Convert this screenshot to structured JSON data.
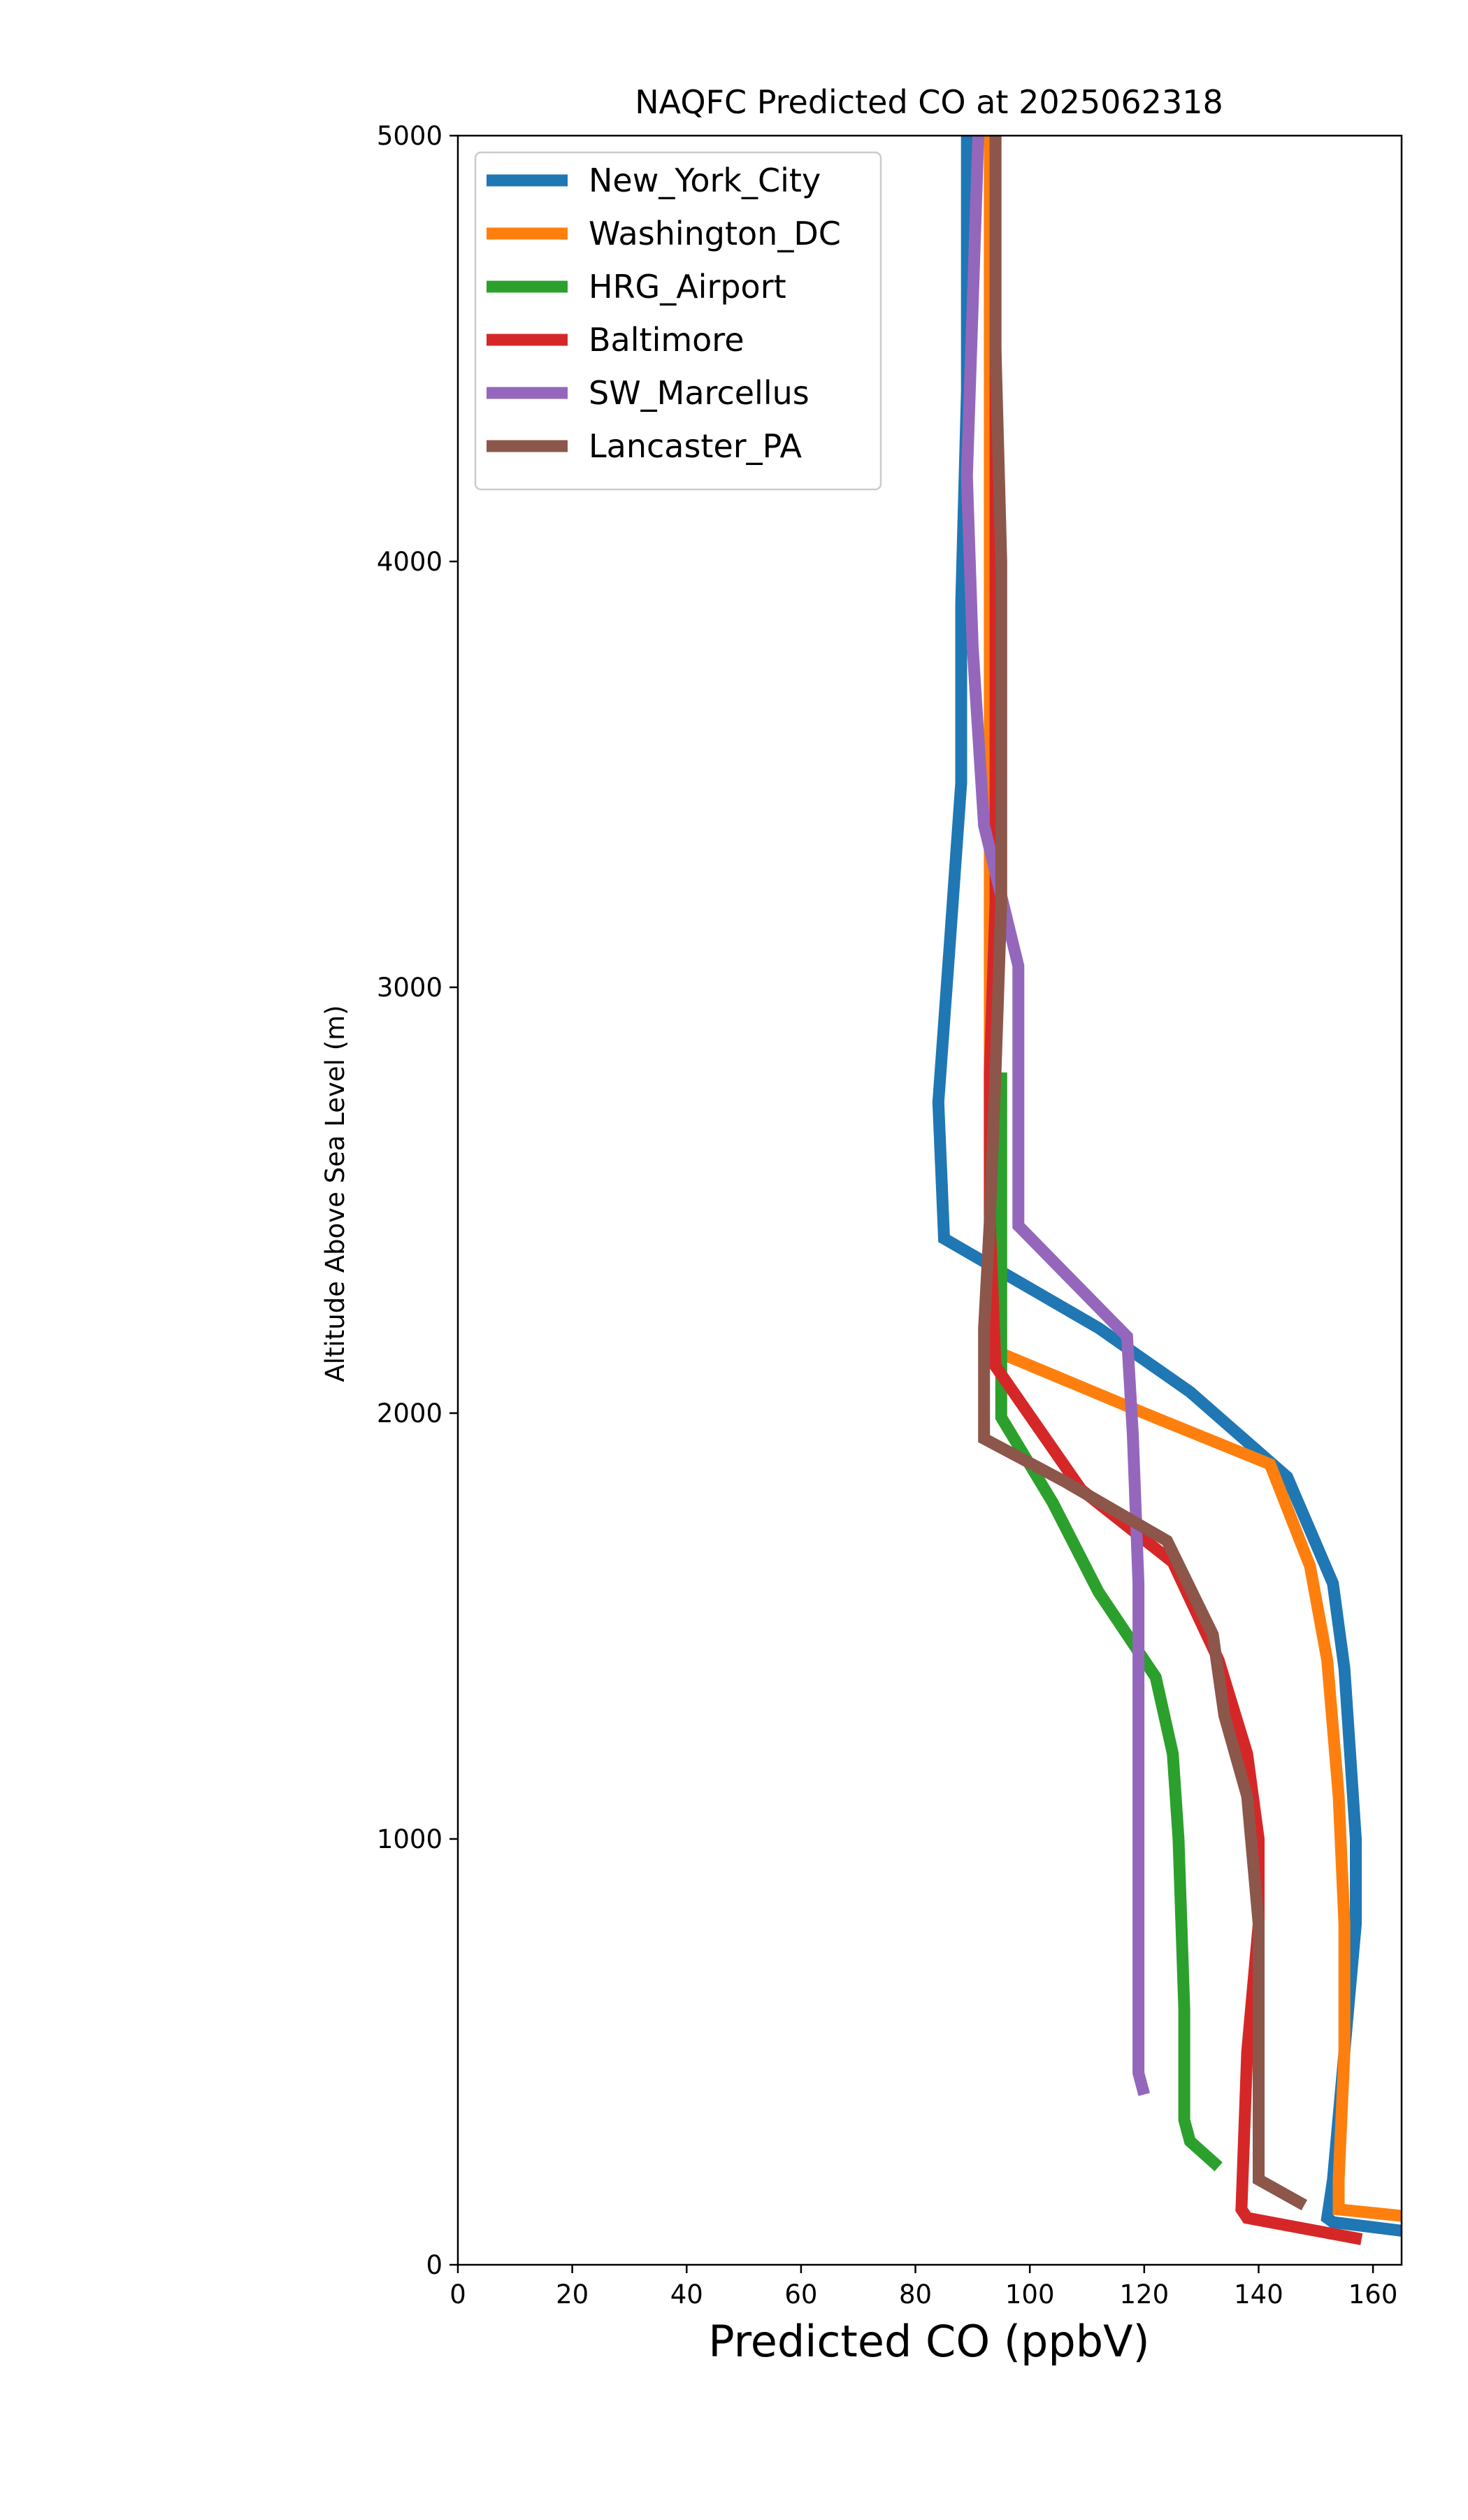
{
  "chart_data": {
    "type": "line",
    "title": "NAQFC Predicted CO at 2025062318",
    "xlabel": "Predicted CO (ppbV)",
    "ylabel": "Altitude Above Sea Level (m)",
    "xlim": [
      0,
      165
    ],
    "ylim": [
      0,
      5000
    ],
    "xticks": [
      0,
      20,
      40,
      60,
      80,
      100,
      120,
      140,
      160
    ],
    "yticks": [
      0,
      1000,
      2000,
      3000,
      4000,
      5000
    ],
    "grid": false,
    "legend_position": "top-left",
    "series": [
      {
        "name": "New_York_City",
        "color": "#1f77b4",
        "points": [
          [
            165,
            80
          ],
          [
            153,
            100
          ],
          [
            152,
            110
          ],
          [
            153,
            200
          ],
          [
            155,
            500
          ],
          [
            157,
            800
          ],
          [
            157,
            1000
          ],
          [
            156,
            1200
          ],
          [
            155,
            1400
          ],
          [
            153,
            1600
          ],
          [
            145,
            1850
          ],
          [
            128,
            2050
          ],
          [
            112,
            2200
          ],
          [
            85,
            2410
          ],
          [
            84,
            2730
          ],
          [
            86,
            3100
          ],
          [
            88,
            3480
          ],
          [
            88,
            3900
          ],
          [
            89,
            4400
          ],
          [
            89,
            4800
          ],
          [
            89,
            5000
          ]
        ]
      },
      {
        "name": "Washington_DC",
        "color": "#ff7f0e",
        "points": [
          [
            165,
            115
          ],
          [
            154,
            130
          ],
          [
            154,
            200
          ],
          [
            155,
            500
          ],
          [
            155,
            800
          ],
          [
            154,
            1100
          ],
          [
            152,
            1420
          ],
          [
            149,
            1640
          ],
          [
            142,
            1880
          ],
          [
            120,
            2000
          ],
          [
            95,
            2140
          ],
          [
            94,
            2300
          ],
          [
            93,
            2600
          ],
          [
            93,
            3000
          ],
          [
            93,
            3500
          ],
          [
            93,
            4000
          ],
          [
            93,
            4500
          ],
          [
            93,
            5000
          ]
        ]
      },
      {
        "name": "HRG_Airport",
        "color": "#2ca02c",
        "points": [
          [
            133,
            230
          ],
          [
            128,
            290
          ],
          [
            127,
            340
          ],
          [
            127,
            600
          ],
          [
            126,
            1000
          ],
          [
            125,
            1200
          ],
          [
            122,
            1380
          ],
          [
            112,
            1580
          ],
          [
            104,
            1790
          ],
          [
            95,
            1990
          ],
          [
            95,
            2200
          ],
          [
            95,
            2500
          ],
          [
            95,
            2800
          ]
        ]
      },
      {
        "name": "Baltimore",
        "color": "#d62728",
        "points": [
          [
            158,
            60
          ],
          [
            138,
            110
          ],
          [
            137,
            130
          ],
          [
            138,
            500
          ],
          [
            140,
            800
          ],
          [
            140,
            1000
          ],
          [
            138,
            1200
          ],
          [
            133,
            1420
          ],
          [
            125,
            1650
          ],
          [
            109,
            1820
          ],
          [
            94,
            2110
          ],
          [
            93,
            2450
          ],
          [
            93,
            2800
          ],
          [
            94,
            3200
          ],
          [
            94,
            3600
          ],
          [
            94,
            4000
          ],
          [
            94,
            4500
          ],
          [
            94,
            5000
          ]
        ]
      },
      {
        "name": "SW_Marcellus",
        "color": "#9467bd",
        "points": [
          [
            120,
            400
          ],
          [
            119,
            450
          ],
          [
            119,
            800
          ],
          [
            119,
            1200
          ],
          [
            119,
            1600
          ],
          [
            118,
            1950
          ],
          [
            117,
            2180
          ],
          [
            98,
            2440
          ],
          [
            98,
            2700
          ],
          [
            98,
            3050
          ],
          [
            92,
            3380
          ],
          [
            90,
            3800
          ],
          [
            89,
            4200
          ],
          [
            90,
            4600
          ],
          [
            91,
            5000
          ]
        ]
      },
      {
        "name": "Lancaster_PA",
        "color": "#8c564b",
        "points": [
          [
            148,
            140
          ],
          [
            140,
            200
          ],
          [
            140,
            500
          ],
          [
            140,
            800
          ],
          [
            138,
            1100
          ],
          [
            134,
            1290
          ],
          [
            132,
            1480
          ],
          [
            124,
            1700
          ],
          [
            106,
            1840
          ],
          [
            92,
            1940
          ],
          [
            92,
            2200
          ],
          [
            93,
            2450
          ],
          [
            94,
            2800
          ],
          [
            95,
            3200
          ],
          [
            95,
            3600
          ],
          [
            95,
            4000
          ],
          [
            94,
            4500
          ],
          [
            94,
            5000
          ]
        ]
      }
    ]
  }
}
